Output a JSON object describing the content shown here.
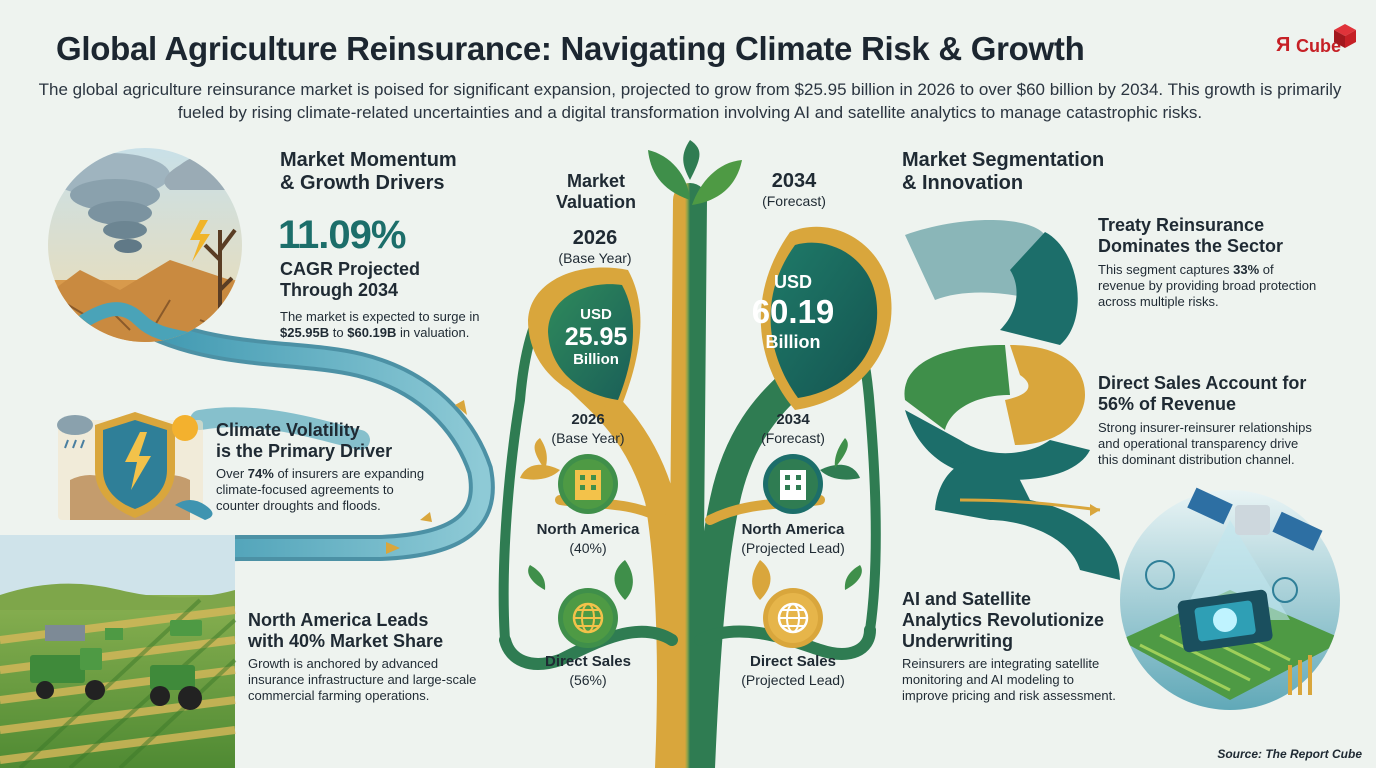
{
  "header": {
    "title": "Global Agriculture Reinsurance: Navigating Climate Risk & Growth",
    "subtitle": "The global agriculture reinsurance market is poised for significant expansion, projected to grow from $25.95 billion in 2026 to over $60 billion by 2034. This growth is primarily fueled by rising climate-related uncertainties and a digital transformation involving AI and satellite analytics to manage catastrophic risks."
  },
  "logo": {
    "letter": "Я",
    "text": "Cube",
    "color": "#c62026"
  },
  "left": {
    "momentum": {
      "heading_line1": "Market Momentum",
      "heading_line2": "& Growth Drivers",
      "stat": "11.09%",
      "stat_label_line1": "CAGR Projected",
      "stat_label_line2": "Through 2034",
      "body_line1": "The market is expected to surge in",
      "body_b1": "$25.95B",
      "body_mid": " to ",
      "body_b2": "$60.19B",
      "body_end": " in valuation."
    },
    "climate": {
      "heading_line1": "Climate Volatility",
      "heading_line2": "is the Primary Driver",
      "body_pre": "Over ",
      "body_b": "74%",
      "body_line1_end": " of insurers are expanding",
      "body_line2": "climate-focused agreements to",
      "body_line3": "counter droughts and floods."
    },
    "north_america": {
      "heading_line1": "North America Leads",
      "heading_line2": "with 40% Market Share",
      "body_line1": "Growth is anchored by advanced",
      "body_line2": "insurance infrastructure and large-scale",
      "body_line3": "commercial farming operations."
    }
  },
  "center": {
    "valuation_label_line1": "Market",
    "valuation_label_line2": "Valuation",
    "year_2026": "2026",
    "base_year": "(Base Year)",
    "year_2034": "2034",
    "forecast": "(Forecast)",
    "leaf_left": {
      "currency": "USD",
      "value": "25.95",
      "unit": "Billion"
    },
    "leaf_right": {
      "currency": "USD",
      "value": "60.19",
      "unit": "Billion"
    },
    "branch_left": {
      "year": "2026",
      "year_sub": "(Base Year)",
      "region": "North America",
      "region_sub": "(40%)",
      "channel": "Direct Sales",
      "channel_sub": "(56%)"
    },
    "branch_right": {
      "year": "2034",
      "year_sub": "(Forecast)",
      "region": "North America",
      "region_sub": "(Projected Lead)",
      "channel": "Direct Sales",
      "channel_sub": "(Projected Lead)"
    }
  },
  "right": {
    "segmentation": {
      "heading_line1": "Market Segmentation",
      "heading_line2": "& Innovation"
    },
    "treaty": {
      "heading_line1": "Treaty Reinsurance",
      "heading_line2": "Dominates the Sector",
      "body_pre": "This segment captures ",
      "body_b": "33%",
      "body_line1_end": " of",
      "body_line2": "revenue by providing broad protection",
      "body_line3": "across multiple risks."
    },
    "direct": {
      "heading_line1": "Direct Sales Account for",
      "heading_line2": "56% of Revenue",
      "body_line1": "Strong insurer-reinsurer relationships",
      "body_line2": "and operational transparency drive",
      "body_line3": "this dominant distribution channel."
    },
    "ai": {
      "heading_line1": "AI and Satellite",
      "heading_line2": "Analytics Revolutionize",
      "heading_line3": "Underwriting",
      "body_line1": "Reinsurers are integrating satellite",
      "body_line2": "monitoring and AI modeling to",
      "body_line3": "improve pricing and risk assessment."
    }
  },
  "source": "Source: The Report Cube",
  "icons": [
    "tornado-illustration",
    "shield-lightning-icon",
    "farm-harvest-illustration",
    "building-icon",
    "globe-icon",
    "satellite-ai-chip-illustration",
    "segment-donut-graphic"
  ],
  "colors": {
    "teal": "#1c6e6a",
    "green": "#3f8f4a",
    "gold": "#d7a43a",
    "river": "#4aa3b8"
  }
}
